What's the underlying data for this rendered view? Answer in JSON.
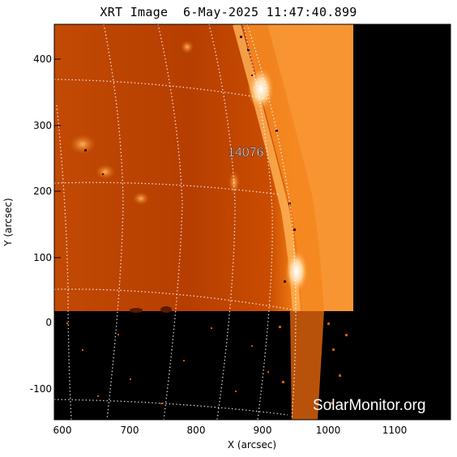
{
  "title": "XRT Image  6-May-2025 11:47:40.899",
  "x_axis": {
    "label": "X (arcsec)",
    "ticks": [
      "600",
      "700",
      "800",
      "900",
      "1000",
      "1100"
    ]
  },
  "y_axis": {
    "label": "Y (arcsec)",
    "ticks": [
      "400",
      "300",
      "200",
      "100",
      "0",
      "-100"
    ]
  },
  "active_region": "14076",
  "watermark": "SolarMonitor.org",
  "colors": {
    "frame_bg": "#000000",
    "disk_dark": "#b33d00",
    "disk_mid": "#d45a08",
    "limb_bright": "#ff9a2a",
    "flare_white": "#fff4dc"
  }
}
